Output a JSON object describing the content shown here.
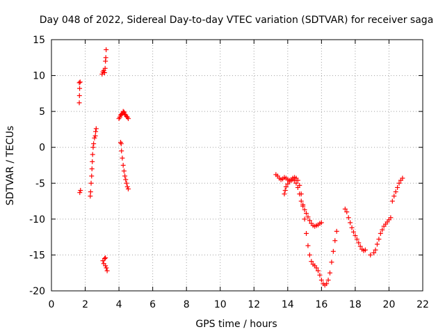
{
  "chart_data": {
    "type": "scatter",
    "title": "Day 048 of 2022, Sidereal Day-to-day VTEC variation (SDTVAR) for receiver saga",
    "xlabel": "GPS time / hours",
    "ylabel": "SDTVAR / TECUs",
    "xlim": [
      0,
      22
    ],
    "ylim": [
      -20,
      15
    ],
    "xticks": [
      "0",
      "2",
      "4",
      "6",
      "8",
      "10",
      "12",
      "14",
      "16",
      "18",
      "20",
      "22"
    ],
    "yticks": [
      "15",
      "10",
      "5",
      "0",
      "-5",
      "-10",
      "-15",
      "-20"
    ],
    "grid": true,
    "legend": "none",
    "marker": "+",
    "color": "#ff0000",
    "series": [
      {
        "name": "SDTVAR",
        "points": [
          [
            1.65,
            9.0
          ],
          [
            1.67,
            8.2
          ],
          [
            1.66,
            7.2
          ],
          [
            1.65,
            6.2
          ],
          [
            1.7,
            9.1
          ],
          [
            1.72,
            -6.0
          ],
          [
            1.68,
            -6.3
          ],
          [
            2.3,
            -6.8
          ],
          [
            2.32,
            -6.2
          ],
          [
            2.35,
            -5.0
          ],
          [
            2.38,
            -4.0
          ],
          [
            2.4,
            -3.0
          ],
          [
            2.42,
            -2.0
          ],
          [
            2.44,
            -1.0
          ],
          [
            2.47,
            0.0
          ],
          [
            2.5,
            0.5
          ],
          [
            2.55,
            1.3
          ],
          [
            2.6,
            1.6
          ],
          [
            2.62,
            2.2
          ],
          [
            2.65,
            2.6
          ],
          [
            3.0,
            10.2
          ],
          [
            3.05,
            10.5
          ],
          [
            3.1,
            10.7
          ],
          [
            3.15,
            10.4
          ],
          [
            3.18,
            11.0
          ],
          [
            3.2,
            12.0
          ],
          [
            3.22,
            12.5
          ],
          [
            3.24,
            13.6
          ],
          [
            3.05,
            -15.8
          ],
          [
            3.1,
            -16.2
          ],
          [
            3.15,
            -15.5
          ],
          [
            3.2,
            -16.5
          ],
          [
            3.25,
            -16.8
          ],
          [
            3.3,
            -17.2
          ],
          [
            3.2,
            -15.4
          ],
          [
            4.0,
            4.0
          ],
          [
            4.05,
            4.2
          ],
          [
            4.1,
            4.5
          ],
          [
            4.15,
            4.6
          ],
          [
            4.2,
            4.7
          ],
          [
            4.25,
            5.0
          ],
          [
            4.3,
            4.9
          ],
          [
            4.35,
            4.6
          ],
          [
            4.4,
            4.5
          ],
          [
            4.45,
            4.3
          ],
          [
            4.5,
            4.2
          ],
          [
            4.55,
            4.0
          ],
          [
            4.1,
            0.7
          ],
          [
            4.13,
            0.5
          ],
          [
            4.15,
            -0.5
          ],
          [
            4.2,
            -1.5
          ],
          [
            4.25,
            -2.5
          ],
          [
            4.3,
            -3.3
          ],
          [
            4.35,
            -4.0
          ],
          [
            4.4,
            -4.5
          ],
          [
            4.45,
            -5.0
          ],
          [
            4.5,
            -5.5
          ],
          [
            4.55,
            -5.8
          ],
          [
            13.3,
            -3.8
          ],
          [
            13.4,
            -4.0
          ],
          [
            13.5,
            -4.3
          ],
          [
            13.6,
            -4.5
          ],
          [
            13.7,
            -4.4
          ],
          [
            13.8,
            -4.2
          ],
          [
            13.9,
            -4.3
          ],
          [
            14.0,
            -4.5
          ],
          [
            14.1,
            -4.6
          ],
          [
            14.2,
            -4.5
          ],
          [
            14.3,
            -4.3
          ],
          [
            14.4,
            -4.2
          ],
          [
            14.5,
            -4.3
          ],
          [
            14.6,
            -4.6
          ],
          [
            14.7,
            -5.3
          ],
          [
            14.8,
            -6.5
          ],
          [
            14.9,
            -8.0
          ],
          [
            15.0,
            -10.0
          ],
          [
            15.1,
            -12.0
          ],
          [
            15.2,
            -13.7
          ],
          [
            15.3,
            -15.0
          ],
          [
            15.4,
            -15.9
          ],
          [
            15.5,
            -16.3
          ],
          [
            15.6,
            -16.5
          ],
          [
            15.7,
            -16.8
          ],
          [
            15.8,
            -17.2
          ],
          [
            15.9,
            -17.8
          ],
          [
            16.0,
            -18.5
          ],
          [
            16.1,
            -19.0
          ],
          [
            16.2,
            -19.2
          ],
          [
            16.3,
            -19.0
          ],
          [
            16.4,
            -18.5
          ],
          [
            16.5,
            -17.5
          ],
          [
            16.6,
            -16.0
          ],
          [
            16.7,
            -14.5
          ],
          [
            16.8,
            -13.0
          ],
          [
            16.9,
            -11.7
          ],
          [
            13.8,
            -6.5
          ],
          [
            13.85,
            -6.0
          ],
          [
            13.9,
            -5.5
          ],
          [
            14.0,
            -5.1
          ],
          [
            14.1,
            -4.8
          ],
          [
            14.2,
            -4.6
          ],
          [
            14.3,
            -4.5
          ],
          [
            14.4,
            -4.6
          ],
          [
            14.5,
            -5.0
          ],
          [
            14.6,
            -5.6
          ],
          [
            14.7,
            -6.5
          ],
          [
            14.8,
            -7.5
          ],
          [
            14.9,
            -8.2
          ],
          [
            15.0,
            -8.7
          ],
          [
            15.1,
            -9.2
          ],
          [
            15.2,
            -9.7
          ],
          [
            15.3,
            -10.2
          ],
          [
            15.4,
            -10.6
          ],
          [
            15.5,
            -10.9
          ],
          [
            15.6,
            -11.0
          ],
          [
            15.7,
            -10.9
          ],
          [
            15.8,
            -10.8
          ],
          [
            15.9,
            -10.6
          ],
          [
            16.0,
            -10.5
          ],
          [
            17.4,
            -8.6
          ],
          [
            17.5,
            -9.0
          ],
          [
            17.6,
            -9.8
          ],
          [
            17.7,
            -10.5
          ],
          [
            17.8,
            -11.2
          ],
          [
            17.9,
            -11.8
          ],
          [
            18.0,
            -12.3
          ],
          [
            18.1,
            -12.8
          ],
          [
            18.2,
            -13.3
          ],
          [
            18.3,
            -13.8
          ],
          [
            18.4,
            -14.2
          ],
          [
            18.5,
            -14.4
          ],
          [
            18.6,
            -14.3
          ],
          [
            18.9,
            -15.0
          ],
          [
            19.1,
            -14.7
          ],
          [
            19.2,
            -14.3
          ],
          [
            19.3,
            -13.5
          ],
          [
            19.4,
            -12.8
          ],
          [
            19.5,
            -12.0
          ],
          [
            19.6,
            -11.5
          ],
          [
            19.7,
            -11.0
          ],
          [
            19.8,
            -10.7
          ],
          [
            19.9,
            -10.4
          ],
          [
            20.0,
            -10.1
          ],
          [
            20.1,
            -9.8
          ],
          [
            20.2,
            -7.5
          ],
          [
            20.3,
            -6.8
          ],
          [
            20.4,
            -6.2
          ],
          [
            20.5,
            -5.6
          ],
          [
            20.6,
            -5.0
          ],
          [
            20.7,
            -4.6
          ],
          [
            20.8,
            -4.3
          ]
        ]
      }
    ]
  }
}
